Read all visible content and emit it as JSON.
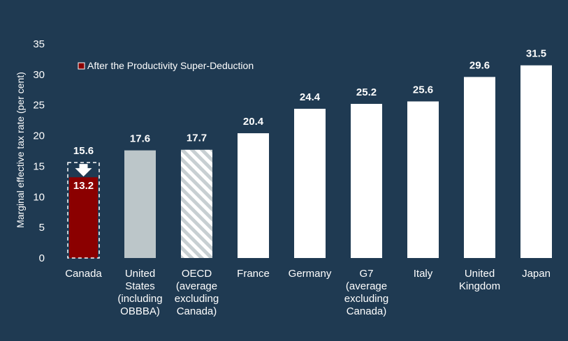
{
  "chart_data": {
    "type": "bar",
    "ylabel": "Marginal effective tax rate (per cent)",
    "ylim": [
      0,
      35
    ],
    "yticks": [
      0,
      5,
      10,
      15,
      20,
      25,
      30,
      35
    ],
    "grid": false,
    "legend": {
      "label": "After the Productivity Super-Deduction",
      "position": "top-left"
    },
    "categories": [
      [
        "Canada"
      ],
      [
        "United",
        "States",
        "(including",
        "OBBBA)"
      ],
      [
        "OECD",
        "(average",
        "excluding",
        "Canada)"
      ],
      [
        "France"
      ],
      [
        "Germany"
      ],
      [
        "G7",
        "(average",
        "excluding",
        "Canada)"
      ],
      [
        "Italy"
      ],
      [
        "United",
        "Kingdom"
      ],
      [
        "Japan"
      ]
    ],
    "values": [
      15.6,
      17.6,
      17.7,
      20.4,
      24.4,
      25.2,
      25.6,
      29.6,
      31.5
    ],
    "value_labels": [
      "15.6",
      "17.6",
      "17.7",
      "20.4",
      "24.4",
      "25.2",
      "25.6",
      "29.6",
      "31.5"
    ],
    "bar_styles": [
      "dashed-outline",
      "grey",
      "hatched",
      "white",
      "white",
      "white",
      "white",
      "white",
      "white"
    ],
    "super_deduction": {
      "category": "Canada",
      "value": 13.2,
      "label": "13.2"
    },
    "colors": {
      "background": "#1f3a52",
      "white": "#ffffff",
      "grey": "#bcc6c9",
      "hatch_stripe": "#c7cfd2",
      "hatch_bg": "#ffffff",
      "highlight": "#8b0000",
      "text": "#ffffff"
    }
  }
}
